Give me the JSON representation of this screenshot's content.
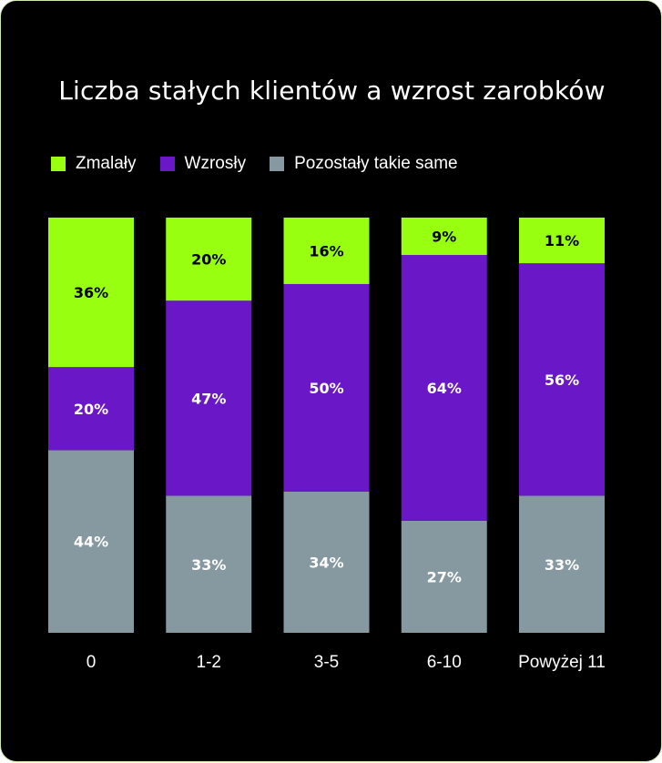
{
  "title": "Liczba stałych klientów a wzrost zarobków",
  "legend": [
    {
      "label": "Zmalały",
      "color": "#99ff11"
    },
    {
      "label": "Wzrosły",
      "color": "#6a18c7"
    },
    {
      "label": "Pozostały takie same",
      "color": "#8699a0"
    }
  ],
  "chart_data": {
    "type": "bar",
    "stacked": true,
    "normalized_percent": true,
    "title": "Liczba stałych klientów a wzrost zarobków",
    "categories": [
      "0",
      "1-2",
      "3-5",
      "6-10",
      "Powyżej 11"
    ],
    "series": [
      {
        "name": "Zmalały",
        "color": "#99ff11",
        "values": [
          36,
          20,
          16,
          9,
          11
        ],
        "labels": [
          "36%",
          "20%",
          "16%",
          "9%",
          "11%"
        ]
      },
      {
        "name": "Wzrosły",
        "color": "#6a18c7",
        "values": [
          20,
          47,
          50,
          64,
          56
        ],
        "labels": [
          "20%",
          "47%",
          "50%",
          "64%",
          "56%"
        ]
      },
      {
        "name": "Pozostały takie same",
        "color": "#8699a0",
        "values": [
          44,
          33,
          34,
          27,
          33
        ],
        "labels": [
          "44%",
          "33%",
          "34%",
          "27%",
          "33%"
        ]
      }
    ],
    "legend_position": "top-left",
    "grid": false
  }
}
